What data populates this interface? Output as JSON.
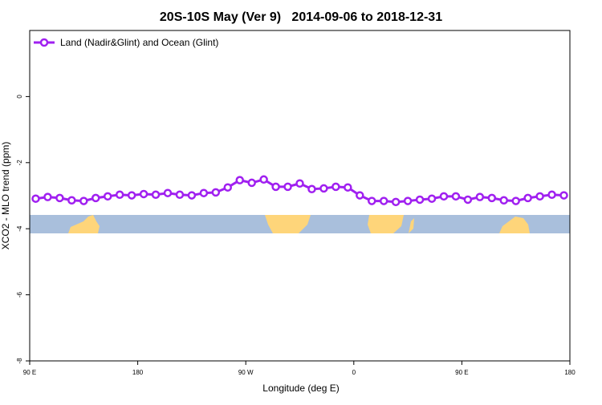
{
  "chart_data": {
    "type": "line",
    "title": "20S-10S May (Ver 9)   2014-09-06 to 2018-12-31",
    "x_label": "Longitude (deg E)",
    "y_label": "XCO2 - MLO trend (ppm)",
    "x": [
      95,
      105,
      115,
      125,
      135,
      145,
      155,
      165,
      175,
      185,
      195,
      205,
      215,
      225,
      235,
      245,
      255,
      265,
      275,
      285,
      295,
      305,
      315,
      325,
      335,
      345,
      355,
      365,
      375,
      385,
      395,
      405,
      415,
      425,
      435,
      445,
      455,
      465,
      475,
      485,
      495,
      505,
      515,
      525,
      535
    ],
    "series": [
      {
        "name": "Land (Nadir&Glint) and Ocean (Glint)",
        "color": "#a020f0",
        "values": [
          -3.09,
          -3.04,
          -3.07,
          -3.14,
          -3.16,
          -3.07,
          -3.02,
          -2.97,
          -2.99,
          -2.95,
          -2.97,
          -2.92,
          -2.97,
          -2.99,
          -2.92,
          -2.9,
          -2.75,
          -2.53,
          -2.61,
          -2.51,
          -2.73,
          -2.73,
          -2.63,
          -2.8,
          -2.78,
          -2.73,
          -2.75,
          -2.99,
          -3.16,
          -3.16,
          -3.19,
          -3.16,
          -3.12,
          -3.09,
          -3.02,
          -3.02,
          -3.12,
          -3.04,
          -3.07,
          -3.14,
          -3.16,
          -3.07,
          -3.02,
          -2.97,
          -2.99
        ]
      }
    ],
    "xlim": [
      90,
      540
    ],
    "xticks": [
      {
        "value": 90,
        "label": "90 E"
      },
      180,
      {
        "value": 270,
        "label": "90 W"
      },
      {
        "value": 360,
        "label": "0"
      },
      {
        "value": 450,
        "label": "90 E"
      },
      {
        "value": 540,
        "label": "180"
      }
    ],
    "ylim": [
      -8,
      2
    ],
    "yticks": [
      -8,
      -6,
      -4,
      -2,
      0
    ],
    "legend": "topleft"
  }
}
